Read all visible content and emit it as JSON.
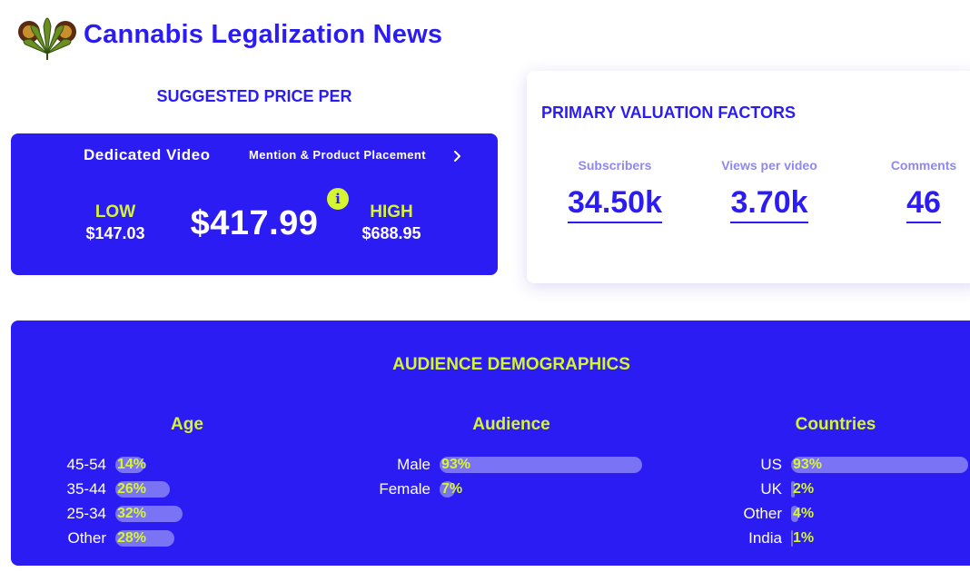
{
  "site": {
    "title": "Cannabis Legalization News",
    "logo_icon": "cannabis-leaf-icon"
  },
  "pricing": {
    "title": "SUGGESTED PRICE PER",
    "tabs": [
      {
        "label": "Dedicated Video",
        "active": true
      },
      {
        "label": "Mention & Product Placement",
        "active": false
      }
    ],
    "low_label": "LOW",
    "low_value": "$147.03",
    "price": "$417.99",
    "high_label": "HIGH",
    "high_value": "$688.95",
    "info_glyph": "i"
  },
  "valuation": {
    "title": "PRIMARY VALUATION FACTORS",
    "metrics": [
      {
        "label": "Subscribers",
        "value": "34.50k"
      },
      {
        "label": "Views per video",
        "value": "3.70k"
      },
      {
        "label": "Comments",
        "value": "46"
      }
    ]
  },
  "demographics": {
    "title": "AUDIENCE DEMOGRAPHICS",
    "age": {
      "title": "Age",
      "rows": [
        {
          "label": "45-54",
          "percent": 14,
          "text": "14%"
        },
        {
          "label": "35-44",
          "percent": 26,
          "text": "26%"
        },
        {
          "label": "25-34",
          "percent": 32,
          "text": "32%"
        },
        {
          "label": "Other",
          "percent": 28,
          "text": "28%"
        }
      ]
    },
    "audience": {
      "title": "Audience",
      "rows": [
        {
          "label": "Male",
          "percent": 93,
          "text": "93%"
        },
        {
          "label": "Female",
          "percent": 7,
          "text": "7%"
        }
      ]
    },
    "countries": {
      "title": "Countries",
      "rows": [
        {
          "label": "US",
          "percent": 93,
          "text": "93%"
        },
        {
          "label": "UK",
          "percent": 2,
          "text": "2%"
        },
        {
          "label": "Other",
          "percent": 4,
          "text": "4%"
        },
        {
          "label": "India",
          "percent": 1,
          "text": "1%"
        }
      ]
    }
  },
  "colors": {
    "primary": "#2b1cf4",
    "accent": "#d6f531",
    "bar": "#7b73f5",
    "muted": "#8f88ee"
  }
}
